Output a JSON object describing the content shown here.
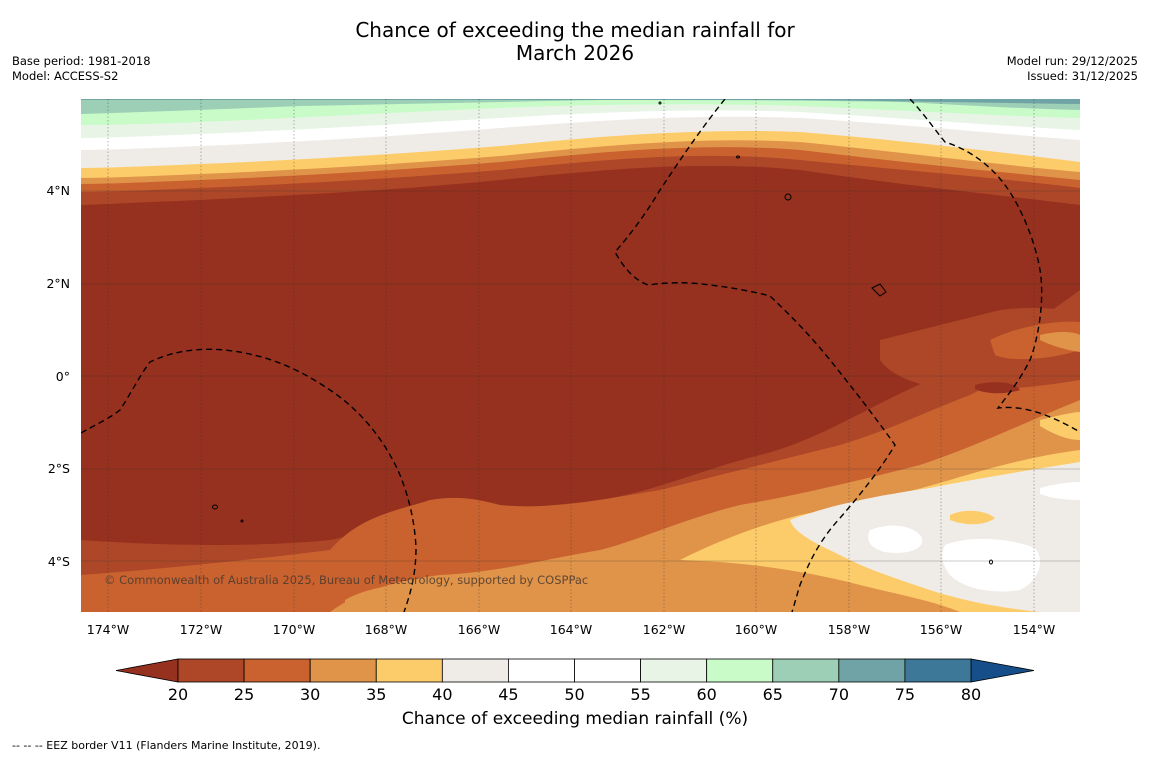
{
  "title": {
    "line1": "Chance of exceeding the median rainfall for",
    "line2": "March 2026"
  },
  "meta": {
    "base_period": "Base period: 1981-2018",
    "model": "Model: ACCESS-S2",
    "model_run": "Model run: 29/12/2025",
    "issued": "Issued: 31/12/2025"
  },
  "map": {
    "lon_ticks": [
      "174°W",
      "172°W",
      "170°W",
      "168°W",
      "166°W",
      "164°W",
      "162°W",
      "160°W",
      "158°W",
      "156°W",
      "154°W"
    ],
    "lat_ticks": [
      "4°N",
      "2°N",
      "0°",
      "2°S",
      "4°S"
    ],
    "copyright": "© Commonwealth of Australia 2025, Bureau of Meteorology, supported by COSPPac"
  },
  "colorbar": {
    "ticks": [
      "20",
      "25",
      "30",
      "35",
      "40",
      "45",
      "50",
      "55",
      "60",
      "65",
      "70",
      "75",
      "80"
    ],
    "colors": [
      "#ae4628",
      "#c9622f",
      "#e0944a",
      "#fdcc6a",
      "#efece8",
      "#ffffff",
      "#ffffff",
      "#e8f5e6",
      "#c8fbc8",
      "#9ccfb6",
      "#6fa3a6",
      "#3d7898"
    ],
    "under_color": "#96301f",
    "over_color": "#164e8a",
    "label": "Chance of exceeding median rainfall (%)"
  },
  "legend_note": "--  --  -- EEZ border V11 (Flanders Marine Institute, 2019)."
}
